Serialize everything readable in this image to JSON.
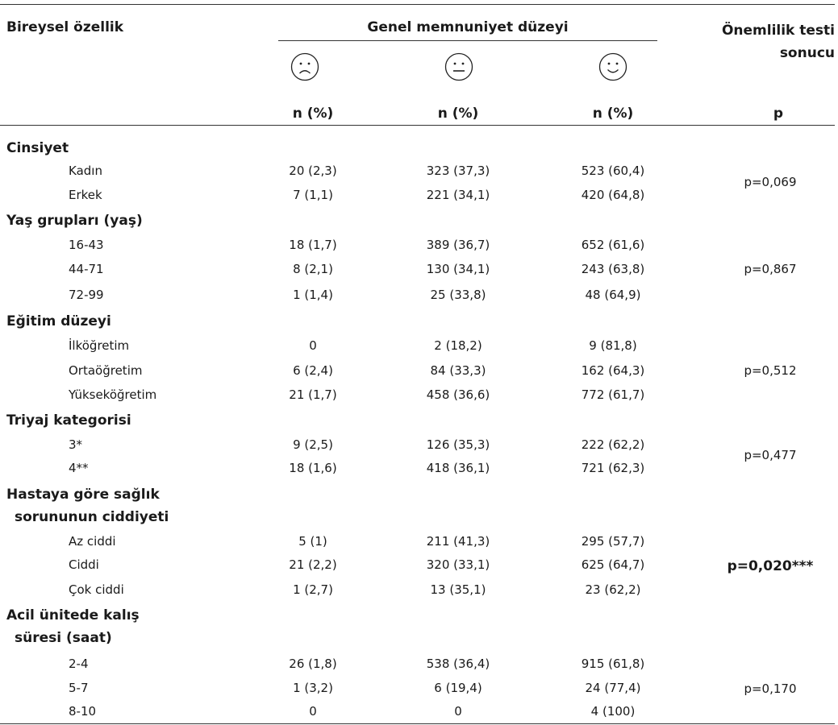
{
  "header": {
    "col_label": "Bireysel özellik",
    "col_group": "Genel memnuniyet düzeyi",
    "col_test_line1": "Önemlilik testi",
    "col_test_line2": "sonucu",
    "n_label": "n (%)",
    "p_label": "p",
    "face_icons": [
      "sad-face-icon",
      "neutral-face-icon",
      "happy-face-icon"
    ]
  },
  "sections": [
    {
      "title": "Cinsiyet",
      "p": "p=0,069",
      "rows": [
        {
          "label": "Kadın",
          "v1": "20 (2,3)",
          "v2": "323 (37,3)",
          "v3": "523 (60,4)"
        },
        {
          "label": "Erkek",
          "v1": "7 (1,1)",
          "v2": "221 (34,1)",
          "v3": "420 (64,8)"
        }
      ]
    },
    {
      "title": "Yaş grupları (yaş)",
      "p": "p=0,867",
      "rows": [
        {
          "label": "16-43",
          "v1": "18 (1,7)",
          "v2": "389 (36,7)",
          "v3": "652 (61,6)"
        },
        {
          "label": "44-71",
          "v1": "8 (2,1)",
          "v2": "130 (34,1)",
          "v3": "243 (63,8)"
        },
        {
          "label": "72-99",
          "v1": "1 (1,4)",
          "v2": "25 (33,8)",
          "v3": "48 (64,9)"
        }
      ]
    },
    {
      "title": "Eğitim düzeyi",
      "p": "p=0,512",
      "rows": [
        {
          "label": "İlköğretim",
          "v1": "0",
          "v2": "2 (18,2)",
          "v3": "9 (81,8)"
        },
        {
          "label": "Ortaöğretim",
          "v1": "6 (2,4)",
          "v2": "84 (33,3)",
          "v3": "162 (64,3)"
        },
        {
          "label": "Yükseköğretim",
          "v1": "21 (1,7)",
          "v2": "458 (36,6)",
          "v3": "772 (61,7)"
        }
      ]
    },
    {
      "title": "Triyaj kategorisi",
      "p": "p=0,477",
      "rows": [
        {
          "label": "3*",
          "v1": "9 (2,5)",
          "v2": "126 (35,3)",
          "v3": "222 (62,2)"
        },
        {
          "label": "4**",
          "v1": "18 (1,6)",
          "v2": "418 (36,1)",
          "v3": "721 (62,3)"
        }
      ]
    },
    {
      "title_line1": "Hastaya göre sağlık",
      "title_line2": "sorununun ciddiyeti",
      "p": "p=0,020***",
      "rows": [
        {
          "label": "Az ciddi",
          "v1": "5 (1)",
          "v2": "211 (41,3)",
          "v3": "295 (57,7)"
        },
        {
          "label": "Ciddi",
          "v1": "21 (2,2)",
          "v2": "320 (33,1)",
          "v3": "625 (64,7)"
        },
        {
          "label": "Çok ciddi",
          "v1": "1 (2,7)",
          "v2": "13 (35,1)",
          "v3": "23 (62,2)"
        }
      ]
    },
    {
      "title_line1": "Acil ünitede kalış",
      "title_line2": "süresi (saat)",
      "p": "p=0,170",
      "rows": [
        {
          "label": "2-4",
          "v1": "26 (1,8)",
          "v2": "538 (36,4)",
          "v3": "915 (61,8)"
        },
        {
          "label": "5-7",
          "v1": "1 (3,2)",
          "v2": "6 (19,4)",
          "v3": "24 (77,4)"
        },
        {
          "label": "8-10",
          "v1": "0",
          "v2": "0",
          "v3": "4 (100)"
        }
      ]
    }
  ]
}
